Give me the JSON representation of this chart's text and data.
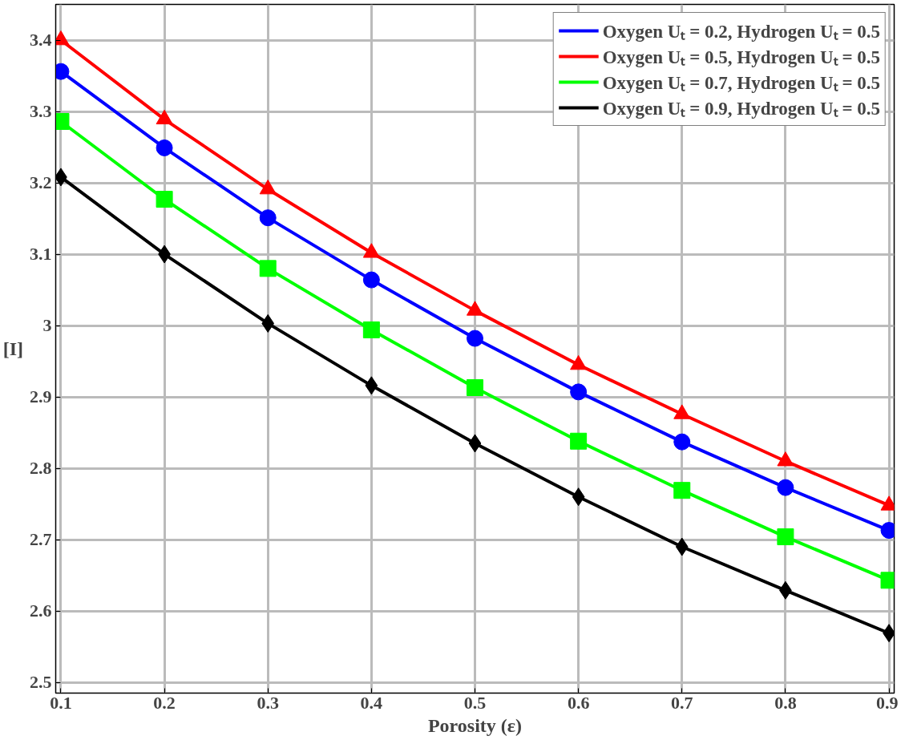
{
  "chart_data": {
    "type": "line",
    "xlabel": "Porosity (ε)",
    "ylabel": "[I]",
    "x": [
      0.1,
      0.2,
      0.3,
      0.4,
      0.5,
      0.6,
      0.7,
      0.8,
      0.9
    ],
    "series": [
      {
        "name": "Oxygen Uₜ = 0.2, Hydrogen Uₜ = 0.5",
        "color": "#0000ff",
        "marker": "circle",
        "values": [
          3.356,
          3.249,
          3.151,
          3.064,
          2.982,
          2.907,
          2.837,
          2.773,
          2.713
        ]
      },
      {
        "name": "Oxygen Uₜ = 0.5, Hydrogen Uₜ = 0.5",
        "color": "#ff0000",
        "marker": "triangle",
        "values": [
          3.4,
          3.289,
          3.191,
          3.102,
          3.021,
          2.945,
          2.876,
          2.81,
          2.748
        ]
      },
      {
        "name": "Oxygen Uₜ = 0.7, Hydrogen Uₜ = 0.5",
        "color": "#00ff00",
        "marker": "square",
        "values": [
          3.286,
          3.177,
          3.08,
          2.994,
          2.913,
          2.838,
          2.769,
          2.704,
          2.643
        ]
      },
      {
        "name": "Oxygen Uₜ = 0.9, Hydrogen Uₜ = 0.5",
        "color": "#000000",
        "marker": "diamond",
        "values": [
          3.208,
          3.1,
          3.003,
          2.916,
          2.835,
          2.76,
          2.69,
          2.629,
          2.569
        ]
      }
    ],
    "xlim": [
      0.095,
      0.905
    ],
    "ylim": [
      2.485,
      3.45
    ],
    "xticks": [
      0.1,
      0.2,
      0.3,
      0.4,
      0.5,
      0.6,
      0.7,
      0.8,
      0.9
    ],
    "yticks": [
      2.5,
      2.6,
      2.7,
      2.8,
      2.9,
      3,
      3.1,
      3.2,
      3.3,
      3.4
    ],
    "grid": true,
    "legend": "top right",
    "line_style": "solid"
  }
}
